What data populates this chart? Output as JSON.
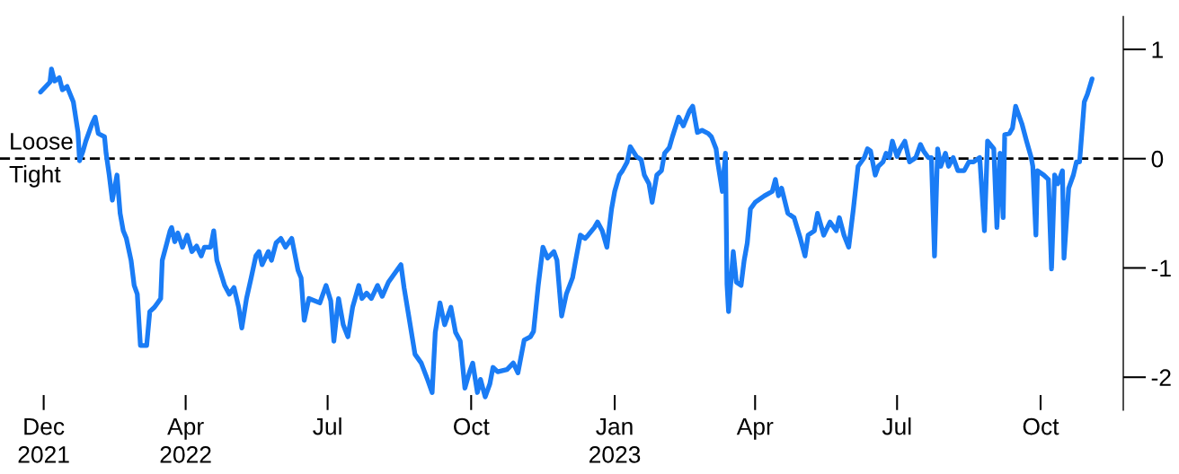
{
  "chart_data": {
    "type": "line",
    "x": [
      "2021-12-29",
      "2022-01-04",
      "2022-01-05",
      "2022-01-07",
      "2022-01-10",
      "2022-01-12",
      "2022-01-15",
      "2022-01-17",
      "2022-01-19",
      "2022-01-22",
      "2022-01-23",
      "2022-01-25",
      "2022-01-27",
      "2022-01-31",
      "2022-02-02",
      "2022-02-04",
      "2022-02-08",
      "2022-02-09",
      "2022-02-11",
      "2022-02-13",
      "2022-02-16",
      "2022-02-18",
      "2022-02-20",
      "2022-02-22",
      "2022-02-25",
      "2022-02-27",
      "2022-03-01",
      "2022-03-03",
      "2022-03-07",
      "2022-03-09",
      "2022-03-12",
      "2022-03-14",
      "2022-03-16",
      "2022-03-17",
      "2022-03-20",
      "2022-03-22",
      "2022-03-23",
      "2022-03-25",
      "2022-03-27",
      "2022-03-30",
      "2022-04-02",
      "2022-04-05",
      "2022-04-08",
      "2022-04-11",
      "2022-04-13",
      "2022-04-17",
      "2022-04-19",
      "2022-04-21",
      "2022-04-26",
      "2022-04-29",
      "2022-05-02",
      "2022-05-05",
      "2022-05-07",
      "2022-05-10",
      "2022-05-13",
      "2022-05-16",
      "2022-05-18",
      "2022-05-20",
      "2022-05-24",
      "2022-05-26",
      "2022-05-29",
      "2022-06-01",
      "2022-06-04",
      "2022-06-08",
      "2022-06-12",
      "2022-06-14",
      "2022-06-16",
      "2022-06-19",
      "2022-06-26",
      "2022-06-30",
      "2022-07-03",
      "2022-07-05",
      "2022-07-08",
      "2022-07-11",
      "2022-07-14",
      "2022-07-17",
      "2022-07-21",
      "2022-07-23",
      "2022-07-26",
      "2022-07-29",
      "2022-08-02",
      "2022-08-05",
      "2022-08-09",
      "2022-08-13",
      "2022-08-17",
      "2022-08-19",
      "2022-08-22",
      "2022-08-26",
      "2022-08-30",
      "2022-09-03",
      "2022-09-06",
      "2022-09-08",
      "2022-09-11",
      "2022-09-14",
      "2022-09-18",
      "2022-09-21",
      "2022-09-24",
      "2022-09-27",
      "2022-09-30",
      "2022-10-02",
      "2022-10-05",
      "2022-10-07",
      "2022-10-10",
      "2022-10-13",
      "2022-10-15",
      "2022-10-18",
      "2022-10-24",
      "2022-10-28",
      "2022-10-31",
      "2022-11-04",
      "2022-11-08",
      "2022-11-10",
      "2022-11-13",
      "2022-11-16",
      "2022-11-19",
      "2022-11-23",
      "2022-11-25",
      "2022-11-28",
      "2022-12-01",
      "2022-12-05",
      "2022-12-07",
      "2022-12-10",
      "2022-12-13",
      "2022-12-15",
      "2022-12-19",
      "2022-12-21",
      "2022-12-24",
      "2022-12-27",
      "2022-12-30",
      "2023-01-01",
      "2023-01-04",
      "2023-01-06",
      "2023-01-09",
      "2023-01-11",
      "2023-01-15",
      "2023-01-18",
      "2023-01-20",
      "2023-01-23",
      "2023-01-25",
      "2023-01-28",
      "2023-01-31",
      "2023-02-02",
      "2023-02-05",
      "2023-02-07",
      "2023-02-11",
      "2023-02-14",
      "2023-02-18",
      "2023-02-20",
      "2023-02-23",
      "2023-02-26",
      "2023-03-02",
      "2023-03-04",
      "2023-03-07",
      "2023-03-08",
      "2023-03-11",
      "2023-03-13",
      "2023-03-14",
      "2023-03-15",
      "2023-03-18",
      "2023-03-20",
      "2023-03-23",
      "2023-03-25",
      "2023-03-27",
      "2023-03-29",
      "2023-04-01",
      "2023-04-07",
      "2023-04-12",
      "2023-04-14",
      "2023-04-16",
      "2023-04-18",
      "2023-04-22",
      "2023-04-26",
      "2023-04-30",
      "2023-05-03",
      "2023-05-05",
      "2023-05-09",
      "2023-05-11",
      "2023-05-15",
      "2023-05-19",
      "2023-05-23",
      "2023-05-25",
      "2023-05-28",
      "2023-05-31",
      "2023-06-03",
      "2023-06-06",
      "2023-06-10",
      "2023-06-12",
      "2023-06-14",
      "2023-06-17",
      "2023-06-19",
      "2023-06-22",
      "2023-06-24",
      "2023-06-26",
      "2023-06-28",
      "2023-07-01",
      "2023-07-03",
      "2023-07-06",
      "2023-07-09",
      "2023-07-13",
      "2023-07-16",
      "2023-07-18",
      "2023-07-21",
      "2023-07-23",
      "2023-07-25",
      "2023-07-27",
      "2023-07-29",
      "2023-08-01",
      "2023-08-03",
      "2023-08-06",
      "2023-08-09",
      "2023-08-13",
      "2023-08-16",
      "2023-08-19",
      "2023-08-23",
      "2023-08-26",
      "2023-08-28",
      "2023-09-01",
      "2023-09-03",
      "2023-09-05",
      "2023-09-07",
      "2023-09-08",
      "2023-09-11",
      "2023-09-13",
      "2023-09-15",
      "2023-09-19",
      "2023-09-22",
      "2023-09-25",
      "2023-09-26",
      "2023-09-28",
      "2023-09-29",
      "2023-10-03",
      "2023-10-06",
      "2023-10-08",
      "2023-10-10",
      "2023-10-12",
      "2023-10-15",
      "2023-10-16",
      "2023-10-19",
      "2023-10-22",
      "2023-10-24",
      "2023-10-26",
      "2023-10-29",
      "2023-10-31",
      "2023-11-03"
    ],
    "series": [
      {
        "color": "#1a7cf5",
        "values": [
          0.61,
          0.7,
          0.82,
          0.71,
          0.74,
          0.63,
          0.66,
          0.59,
          0.52,
          0.24,
          -0.02,
          0.06,
          0.16,
          0.32,
          0.38,
          0.23,
          0.2,
          0.05,
          -0.15,
          -0.38,
          -0.15,
          -0.5,
          -0.66,
          -0.73,
          -0.93,
          -1.16,
          -1.24,
          -1.71,
          -1.71,
          -1.4,
          -1.36,
          -1.32,
          -1.28,
          -0.93,
          -0.77,
          -0.66,
          -0.63,
          -0.76,
          -0.68,
          -0.81,
          -0.7,
          -0.85,
          -0.8,
          -0.89,
          -0.81,
          -0.81,
          -0.66,
          -0.93,
          -1.16,
          -1.24,
          -1.18,
          -1.36,
          -1.55,
          -1.28,
          -1.09,
          -0.89,
          -0.85,
          -0.97,
          -0.85,
          -0.93,
          -0.77,
          -0.73,
          -0.81,
          -0.73,
          -1.02,
          -1.09,
          -1.48,
          -1.28,
          -1.32,
          -1.16,
          -1.3,
          -1.67,
          -1.28,
          -1.52,
          -1.63,
          -1.36,
          -1.16,
          -1.28,
          -1.23,
          -1.28,
          -1.16,
          -1.26,
          -1.13,
          -1.05,
          -0.97,
          -1.18,
          -1.44,
          -1.79,
          -1.87,
          -2.02,
          -2.14,
          -1.59,
          -1.32,
          -1.52,
          -1.36,
          -1.59,
          -1.67,
          -2.1,
          -1.95,
          -1.87,
          -2.14,
          -2.02,
          -2.18,
          -2.06,
          -1.91,
          -1.95,
          -1.93,
          -1.87,
          -1.96,
          -1.66,
          -1.63,
          -1.58,
          -1.16,
          -0.81,
          -0.91,
          -0.85,
          -0.93,
          -1.44,
          -1.24,
          -1.09,
          -0.93,
          -0.7,
          -0.73,
          -0.7,
          -0.63,
          -0.58,
          -0.66,
          -0.81,
          -0.46,
          -0.3,
          -0.15,
          -0.11,
          -0.03,
          0.11,
          0.02,
          -0.01,
          -0.15,
          -0.23,
          -0.4,
          -0.15,
          -0.11,
          0.05,
          0.1,
          0.2,
          0.38,
          0.3,
          0.44,
          0.48,
          0.24,
          0.26,
          0.23,
          0.2,
          0.09,
          -0.03,
          -0.3,
          0.05,
          -1.15,
          -1.4,
          -0.85,
          -1.13,
          -1.16,
          -0.93,
          -0.77,
          -0.46,
          -0.4,
          -0.34,
          -0.3,
          -0.19,
          -0.34,
          -0.27,
          -0.5,
          -0.54,
          -0.73,
          -0.89,
          -0.7,
          -0.66,
          -0.5,
          -0.7,
          -0.58,
          -0.66,
          -0.54,
          -0.7,
          -0.81,
          -0.46,
          -0.07,
          0.01,
          0.09,
          0.07,
          -0.15,
          -0.07,
          -0.03,
          0.05,
          0.01,
          0.16,
          0.02,
          0.09,
          0.16,
          -0.03,
          0.01,
          0.13,
          0.07,
          0.01,
          0.01,
          -0.89,
          0.09,
          -0.07,
          0.05,
          -0.07,
          0.01,
          -0.11,
          -0.11,
          -0.03,
          -0.03,
          0.01,
          -0.66,
          0.16,
          0.09,
          -0.63,
          0.05,
          -0.54,
          0.22,
          0.23,
          0.28,
          0.48,
          0.32,
          0.16,
          0.01,
          -0.07,
          -0.7,
          -0.11,
          -0.15,
          -0.19,
          -1.01,
          -0.15,
          -0.23,
          -0.11,
          -0.91,
          -0.27,
          -0.15,
          -0.03,
          -0.03,
          0.52,
          0.59,
          0.73
        ]
      }
    ],
    "xlim": [
      "2021-12-03",
      "2023-11-23"
    ],
    "xticks": [
      {
        "value": "2021-12-31",
        "label": "Dec\n2021"
      },
      {
        "value": "2022-04-01",
        "label": "Apr\n2022"
      },
      {
        "value": "2022-07-01",
        "label": "Jul"
      },
      {
        "value": "2022-10-01",
        "label": "Oct"
      },
      {
        "value": "2023-01-01",
        "label": "Jan\n2023"
      },
      {
        "value": "2023-04-01",
        "label": "Apr"
      },
      {
        "value": "2023-07-01",
        "label": "Jul"
      },
      {
        "value": "2023-10-01",
        "label": "Oct"
      }
    ],
    "ylim": [
      -2.3,
      1.3
    ],
    "yticks": [
      -2,
      -1,
      0,
      1
    ],
    "ref_lines": [
      {
        "axis": "y",
        "value": 0,
        "color": "#000000",
        "line_style": "dashed"
      }
    ],
    "annotations": [
      "Loose",
      "Tight"
    ],
    "grid": false,
    "marker": "none",
    "line_style": "solid"
  }
}
